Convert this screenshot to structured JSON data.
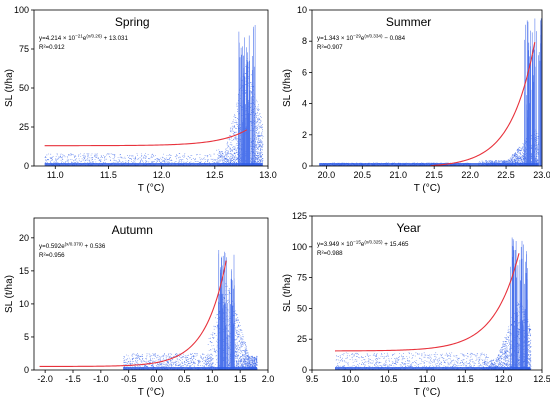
{
  "chart_data": [
    {
      "id": "spring",
      "type": "scatter",
      "title": "Spring",
      "xlabel": "T (°C)",
      "ylabel": "SL (t/ha)",
      "xlim": [
        10.8,
        13.0
      ],
      "ylim": [
        0,
        100
      ],
      "xticks": [
        11.0,
        11.5,
        12.0,
        12.5,
        13.0
      ],
      "yticks": [
        0,
        25,
        50,
        75,
        100
      ],
      "tick_labels_x": [
        "11.0",
        "11.5",
        "12.0",
        "12.5",
        "13.0"
      ],
      "tick_labels_y": [
        "0",
        "25",
        "50",
        "75",
        "100"
      ],
      "grid": false,
      "equation": {
        "prefix": "y=4.214 × 10",
        "exp1": "−21",
        "mid": "e",
        "exp2": "(x/0.26)",
        "suffix": " + 13.031"
      },
      "r2": "R²=0.912",
      "fit": {
        "a": 4.214e-21,
        "t": 0.26,
        "c": 13.031,
        "x_range": [
          10.9,
          12.8
        ]
      },
      "scatter": {
        "color": "#2d5be8",
        "base_band": {
          "x_range": [
            10.9,
            12.6
          ],
          "y_range": [
            0,
            8
          ]
        },
        "main_mass": {
          "x_range": [
            12.5,
            12.95
          ],
          "y_peak": 70
        },
        "spike": {
          "x": 12.8,
          "y_max": 93
        }
      },
      "fit_color": "#e8323c"
    },
    {
      "id": "summer",
      "type": "scatter",
      "title": "Summer",
      "xlabel": "T (°C)",
      "ylabel": "SL (t/ha)",
      "xlim": [
        19.8,
        23.0
      ],
      "ylim": [
        0,
        10
      ],
      "xticks": [
        20.0,
        20.5,
        21.0,
        21.5,
        22.0,
        22.5,
        23.0
      ],
      "yticks": [
        0,
        2,
        4,
        6,
        8,
        10
      ],
      "tick_labels_x": [
        "20.0",
        "20.5",
        "21.0",
        "21.5",
        "22.0",
        "22.5",
        "23.0"
      ],
      "tick_labels_y": [
        "0",
        "2",
        "4",
        "6",
        "8",
        "10"
      ],
      "grid": false,
      "equation": {
        "prefix": "y=1.343 × 10",
        "exp1": "−29",
        "mid": "e",
        "exp2": "(x/0.334)",
        "suffix": " − 0.084"
      },
      "r2": "R²=0.907",
      "fit": {
        "a": 1.343e-29,
        "t": 0.334,
        "c": -0.084,
        "x_range": [
          21.45,
          22.9
        ]
      },
      "scatter": {
        "color": "#2d5be8",
        "base_band": {
          "x_range": [
            19.9,
            22.0
          ],
          "y_range": [
            0,
            0.2
          ]
        },
        "main_mass": {
          "x_range": [
            22.1,
            22.95
          ],
          "y_peak": 2.4
        },
        "spike": {
          "x": 22.9,
          "y_max": 9.5
        }
      },
      "fit_color": "#e8323c"
    },
    {
      "id": "autumn",
      "type": "scatter",
      "title": "Autumn",
      "xlabel": "T (°C)",
      "ylabel": "SL (t/ha)",
      "xlim": [
        -2.2,
        2.0
      ],
      "ylim": [
        0,
        23
      ],
      "xticks": [
        -2.0,
        -1.5,
        -1.0,
        -0.5,
        0.0,
        0.5,
        1.0,
        1.5,
        2.0
      ],
      "yticks": [
        0,
        5,
        10,
        15,
        20
      ],
      "tick_labels_x": [
        "-2.0",
        "-1.5",
        "-1.0",
        "-0.5",
        "0.0",
        "0.5",
        "1.0",
        "1.5",
        "2.0"
      ],
      "tick_labels_y": [
        "0",
        "5",
        "10",
        "15",
        "20"
      ],
      "grid": false,
      "equation": {
        "prefix": "y=0.592e",
        "exp1": "",
        "mid": "",
        "exp2": "(x/0.379)",
        "suffix": " + 0.536"
      },
      "r2": "R²=0.956",
      "fit": {
        "a": 0.592,
        "t": 0.379,
        "c": 0.536,
        "x_range": [
          -2.1,
          1.25
        ]
      },
      "scatter": {
        "color": "#2d5be8",
        "base_band": {
          "x_range": [
            -0.6,
            1.0
          ],
          "y_range": [
            0,
            2.5
          ]
        },
        "main_mass": {
          "x_range": [
            0.9,
            1.8
          ],
          "y_peak": 14
        },
        "spike": {
          "x": 1.25,
          "y_max": 18.5
        }
      },
      "fit_color": "#e8323c"
    },
    {
      "id": "year",
      "type": "scatter",
      "title": "Year",
      "xlabel": "T (°C)",
      "ylabel": "SL (t/ha)",
      "xlim": [
        9.5,
        12.5
      ],
      "ylim": [
        0,
        125
      ],
      "xticks": [
        9.5,
        10.0,
        10.5,
        11.0,
        11.5,
        12.0,
        12.5
      ],
      "yticks": [
        0,
        25,
        50,
        75,
        100,
        125
      ],
      "tick_labels_x": [
        "9.5",
        "10.0",
        "10.5",
        "11.0",
        "11.5",
        "12.0",
        "12.5"
      ],
      "tick_labels_y": [
        "0",
        "25",
        "50",
        "75",
        "100",
        "125"
      ],
      "grid": false,
      "equation": {
        "prefix": "y=3.949 × 10",
        "exp1": "−15",
        "mid": "e",
        "exp2": "(x/0.325)",
        "suffix": " + 15.465"
      },
      "r2": "R²=0.988",
      "fit": {
        "a": 3.949e-15,
        "t": 0.325,
        "c": 15.465,
        "x_range": [
          9.8,
          12.2
        ]
      },
      "scatter": {
        "color": "#2d5be8",
        "base_band": {
          "x_range": [
            9.8,
            11.8
          ],
          "y_range": [
            0,
            14
          ]
        },
        "main_mass": {
          "x_range": [
            11.7,
            12.35
          ],
          "y_peak": 60
        },
        "spike": {
          "x": 12.2,
          "y_max": 108
        }
      },
      "fit_color": "#e8323c"
    }
  ]
}
